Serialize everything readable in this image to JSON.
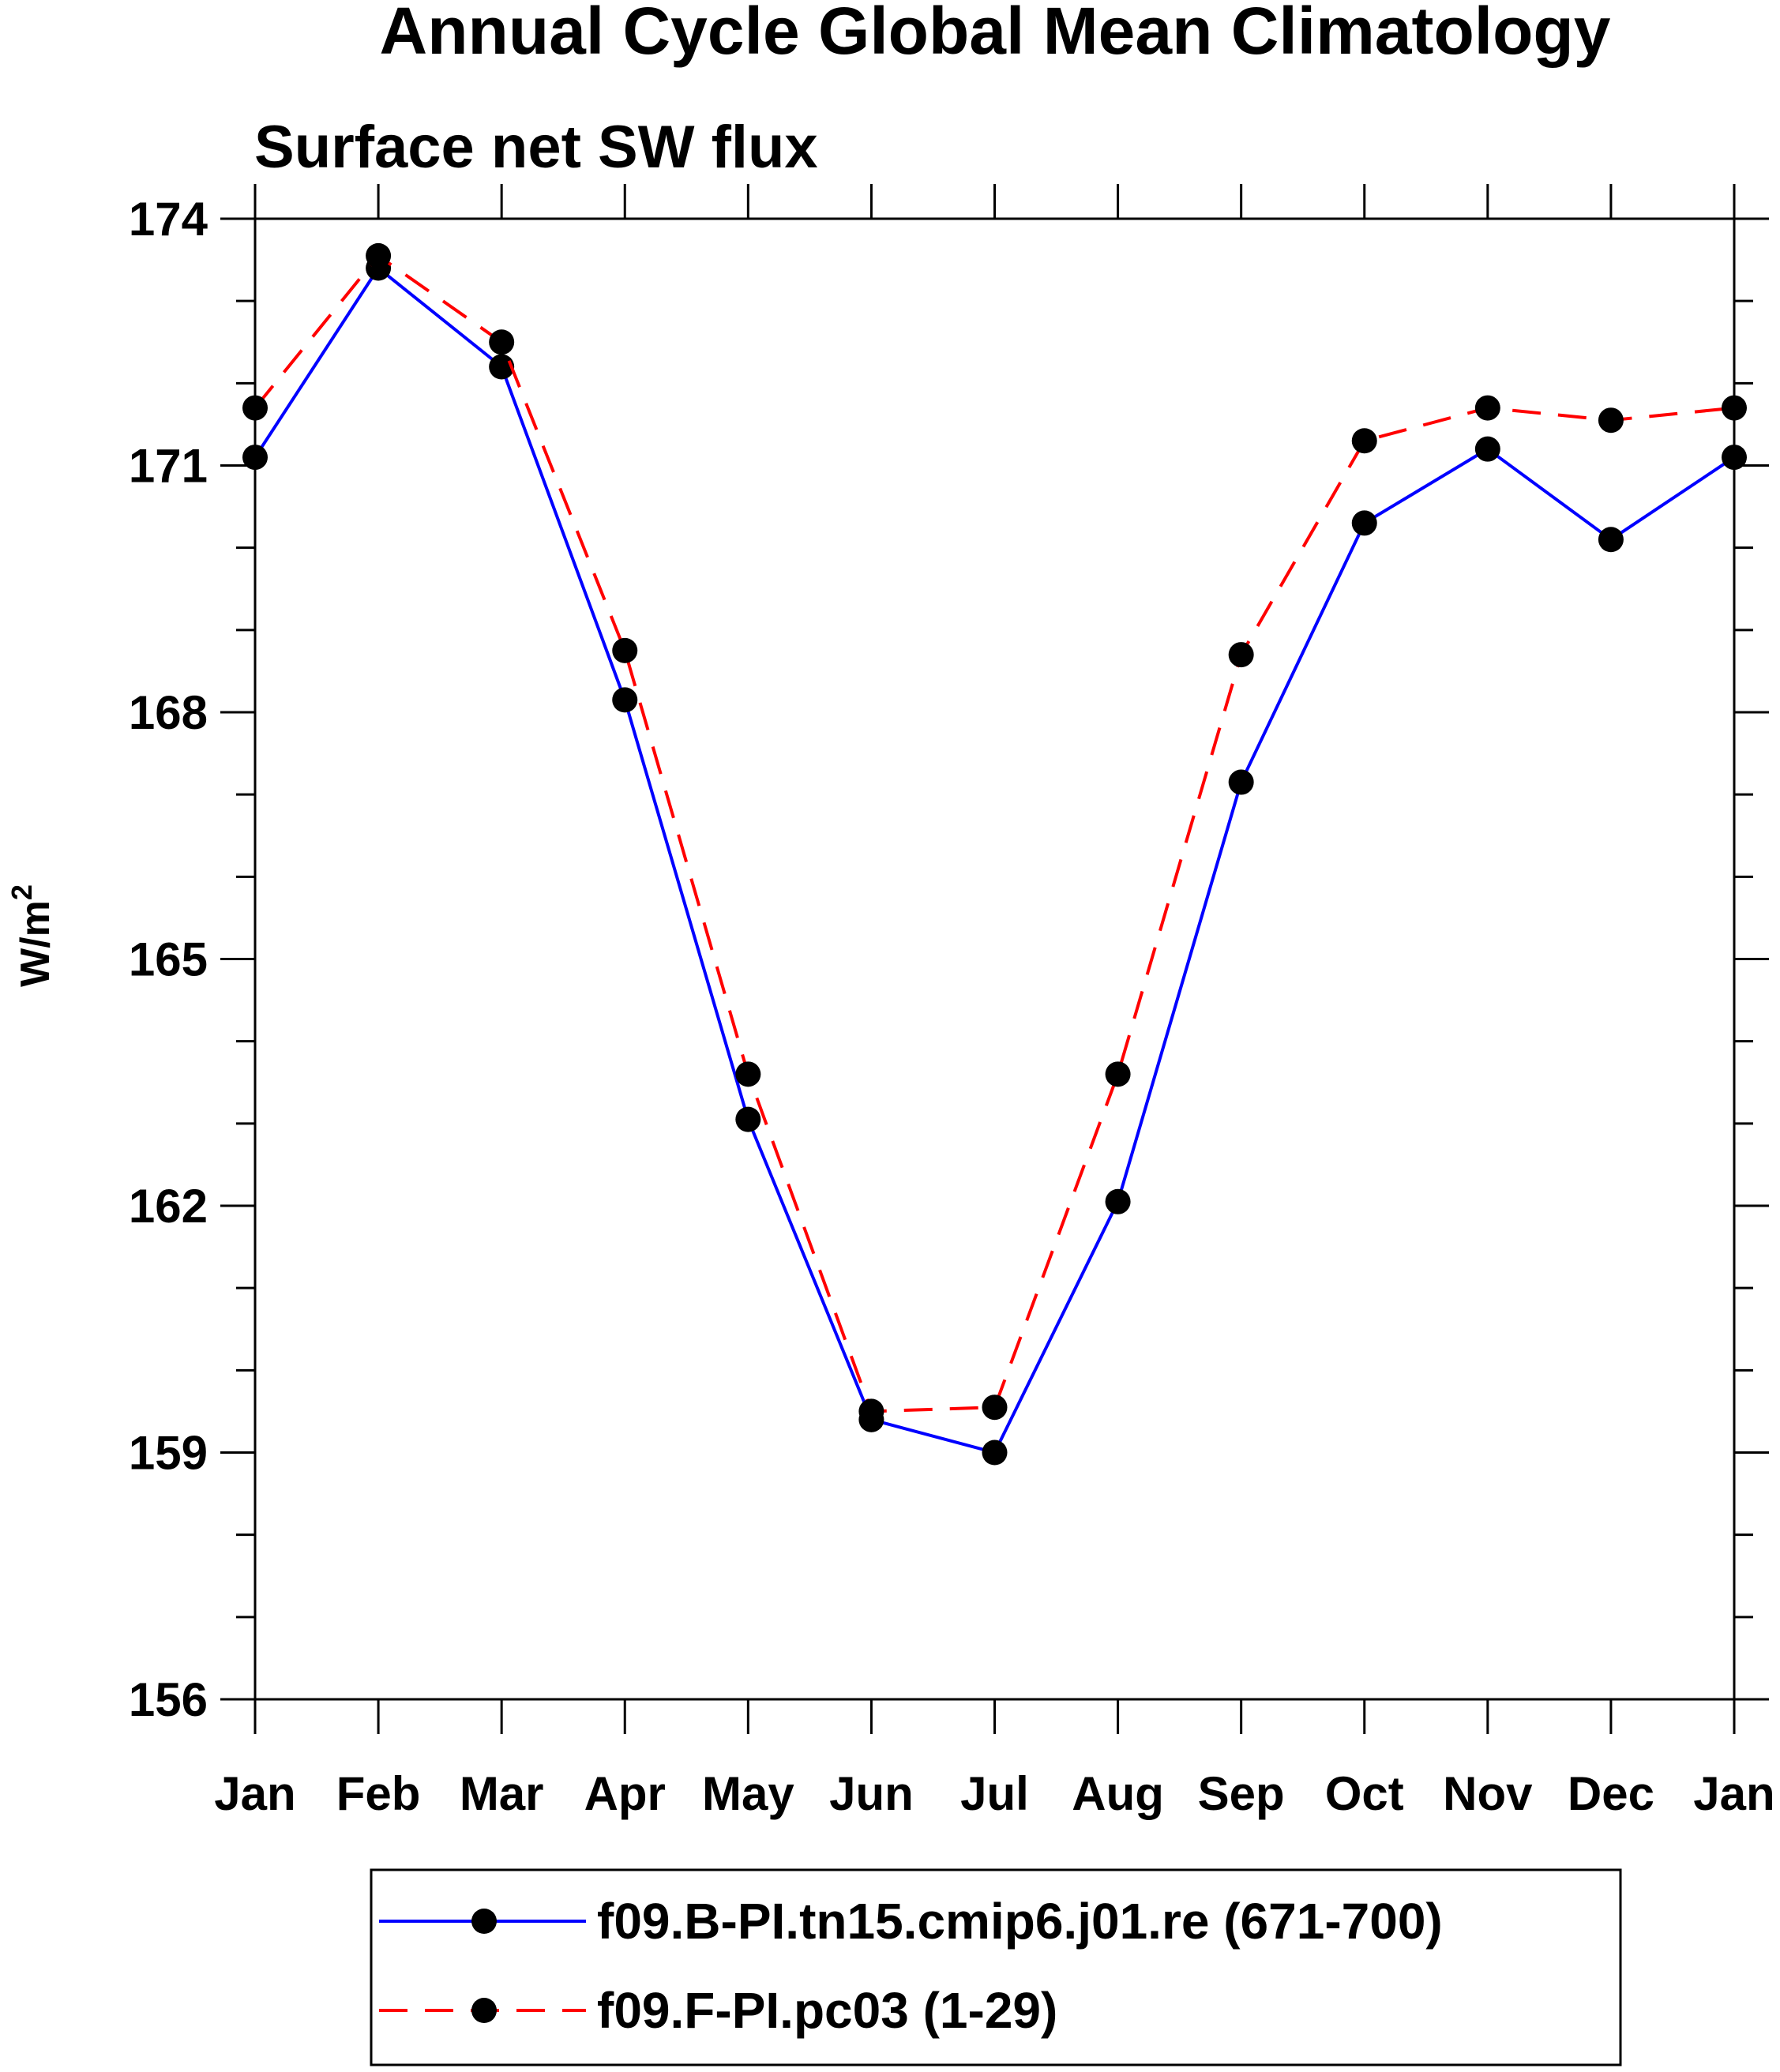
{
  "chart_data": {
    "type": "line",
    "title": "Annual Cycle Global Mean Climatology",
    "subtitle": "Surface net SW flux",
    "ylabel": "W/m",
    "ylabel_sup": "2",
    "ylim": [
      156,
      174
    ],
    "yticks": [
      156,
      159,
      162,
      165,
      168,
      171,
      174
    ],
    "yminor_step": 1,
    "categories": [
      "Jan",
      "Feb",
      "Mar",
      "Apr",
      "May",
      "Jun",
      "Jul",
      "Aug",
      "Sep",
      "Oct",
      "Nov",
      "Dec",
      "Jan"
    ],
    "grid": false,
    "legend_position": "bottom",
    "series": [
      {
        "name": "f09.B-PI.tn15.cmip6.j01.re (671-700)",
        "color": "#0000ff",
        "dash": "solid",
        "marker": "filled-circle",
        "values": [
          171.1,
          173.4,
          172.2,
          168.15,
          163.05,
          159.4,
          159.0,
          162.05,
          167.15,
          170.3,
          171.2,
          170.1,
          171.1
        ]
      },
      {
        "name": "f09.F-PI.pc03 (1-29)",
        "color": "#ff0000",
        "dash": "dashed",
        "marker": "filled-circle",
        "values": [
          171.7,
          173.55,
          172.5,
          168.75,
          163.6,
          159.5,
          159.55,
          163.6,
          168.7,
          171.3,
          171.7,
          171.55,
          171.7
        ]
      }
    ]
  }
}
